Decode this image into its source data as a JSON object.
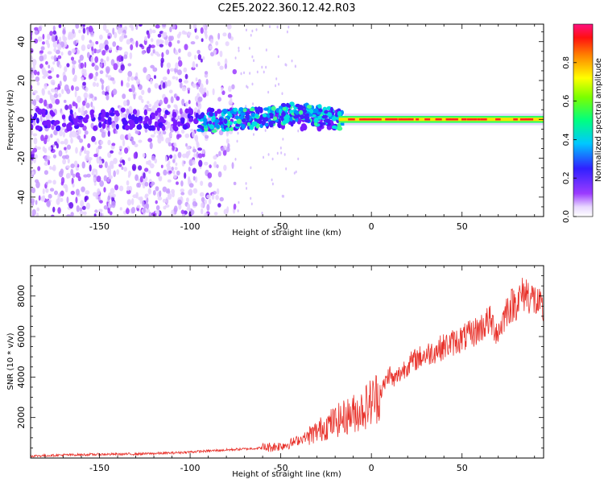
{
  "title": "C2E5.2022.360.12.42.R03",
  "chart_data": [
    {
      "type": "heatmap",
      "xlabel": "Height of straight line (km)",
      "ylabel": "Frequency (Hz)",
      "xlim": [
        -188,
        95
      ],
      "ylim": [
        -50,
        49
      ],
      "xticks": [
        -150,
        -100,
        -50,
        0,
        50
      ],
      "yticks": [
        -40,
        -20,
        0,
        20,
        40
      ],
      "colorbar": {
        "label": "Normalized spectral amplitude",
        "range": [
          0,
          1
        ],
        "ticks": [
          "0.0",
          "0.2",
          "0.4",
          "0.6",
          "0.8"
        ],
        "colormap": "rainbow (white-purple-blue-cyan-green-yellow-red-magenta)"
      },
      "grid": false
    },
    {
      "type": "line",
      "xlabel": "Height of straight line (km)",
      "ylabel": "SNR (10 * v/v)",
      "xlim": [
        -188,
        95
      ],
      "ylim": [
        0,
        9500
      ],
      "xticks": [
        -150,
        -100,
        -50,
        0,
        50
      ],
      "yticks": [
        2000,
        4000,
        6000,
        8000
      ],
      "color": "#e8312a",
      "grid": false,
      "x": [
        -188,
        -170,
        -150,
        -130,
        -110,
        -100,
        -90,
        -80,
        -70,
        -60,
        -50,
        -45,
        -40,
        -35,
        -30,
        -25,
        -20,
        -15,
        -10,
        -5,
        0,
        5,
        8,
        10,
        12,
        15,
        20,
        25,
        30,
        35,
        40,
        45,
        50,
        55,
        60,
        65,
        70,
        75,
        80,
        85,
        90,
        95
      ],
      "y": [
        100,
        150,
        180,
        200,
        250,
        300,
        350,
        400,
        450,
        500,
        600,
        700,
        900,
        1100,
        1300,
        1600,
        1800,
        2000,
        2200,
        2400,
        2800,
        3200,
        3800,
        4200,
        3800,
        4100,
        4600,
        4900,
        5100,
        5300,
        5500,
        5700,
        5900,
        6100,
        6400,
        6800,
        6200,
        7400,
        7700,
        8200,
        7800,
        7200
      ]
    }
  ]
}
